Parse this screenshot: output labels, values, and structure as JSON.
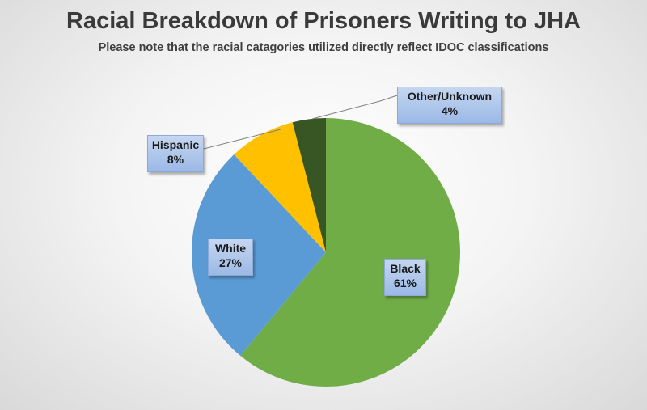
{
  "chart_data": {
    "type": "pie",
    "title": "Racial Breakdown of Prisoners Writing to JHA",
    "subtitle": "Please note that the racial catagories utilized directly reflect IDOC classifications",
    "slices": [
      {
        "label": "Black",
        "value": 61,
        "value_label": "61%",
        "color": "#70ad47"
      },
      {
        "label": "White",
        "value": 27,
        "value_label": "27%",
        "color": "#5b9bd5"
      },
      {
        "label": "Hispanic",
        "value": 8,
        "value_label": "8%",
        "color": "#ffc000"
      },
      {
        "label": "Other/Unknown",
        "value": 4,
        "value_label": "4%",
        "color": "#375623"
      }
    ],
    "start_angle_deg": 0,
    "direction": "clockwise"
  }
}
